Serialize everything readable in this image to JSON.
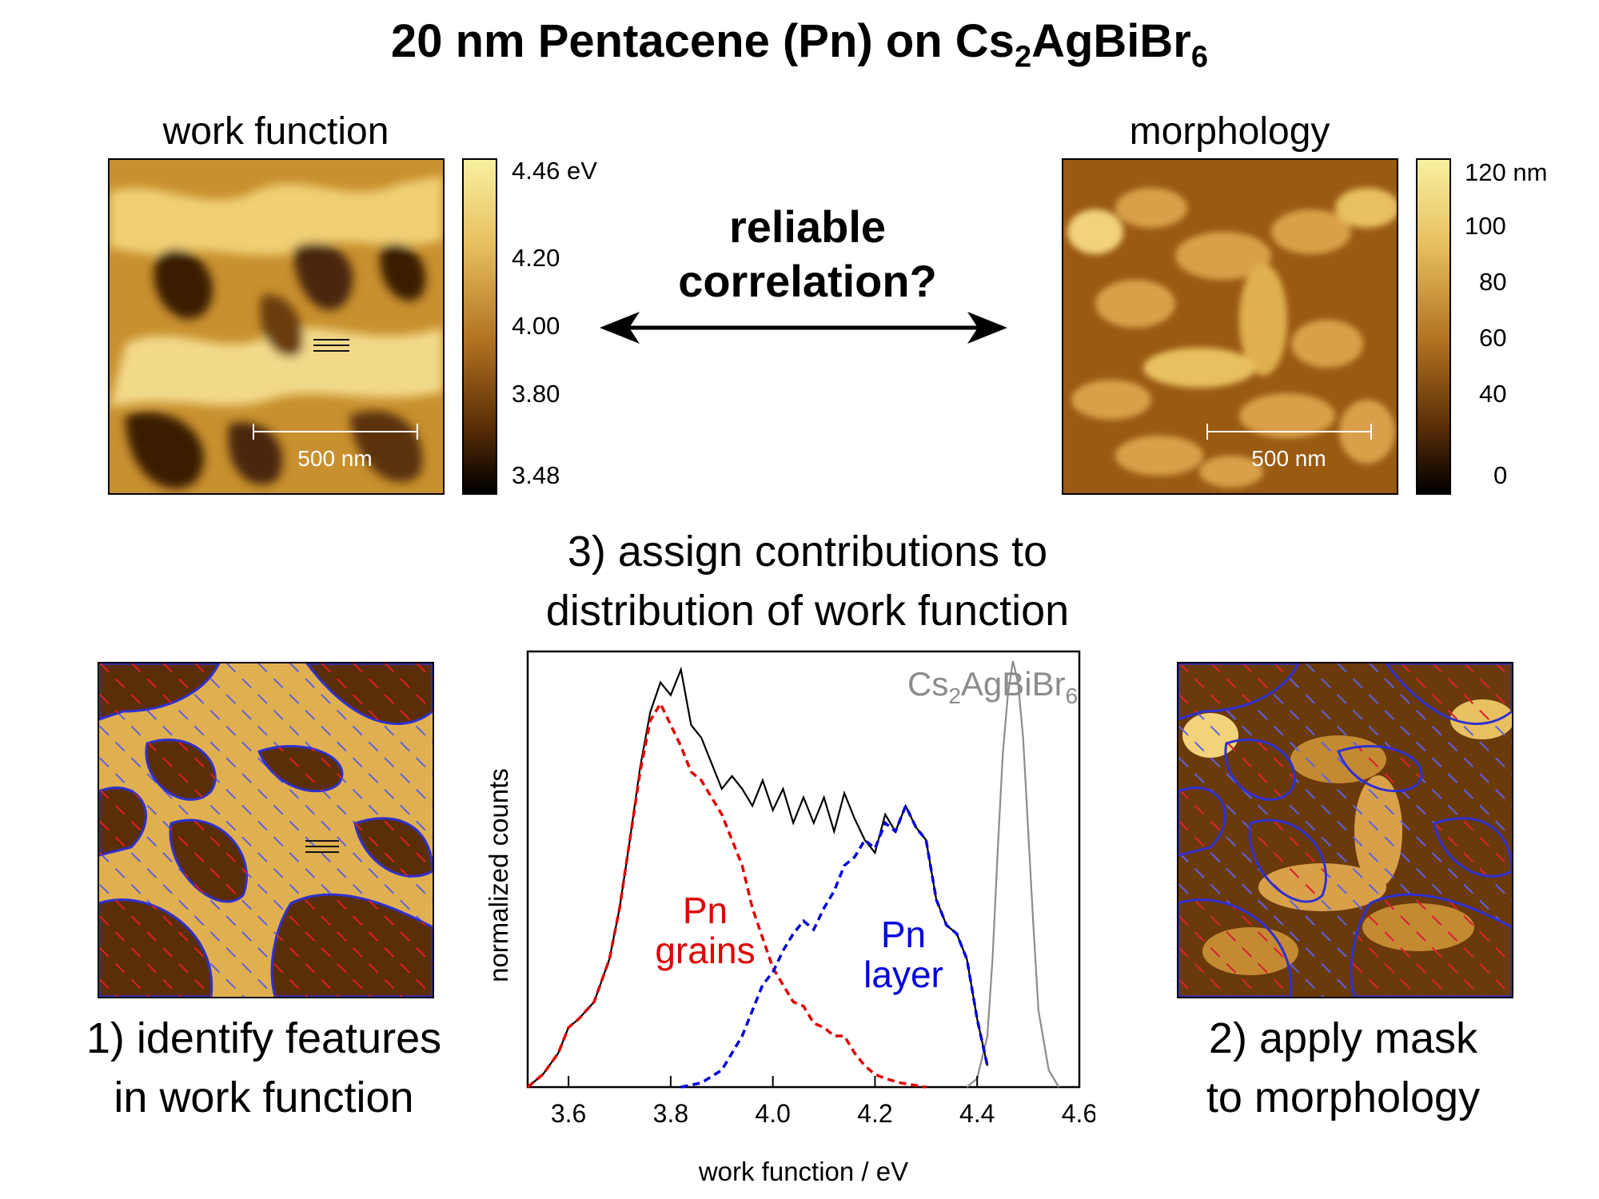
{
  "title": {
    "prefix": "20 nm Pentacene (Pn) on Cs",
    "sub1": "2",
    "mid": "AgBiBr",
    "sub2": "6"
  },
  "top_left": {
    "label": "work function",
    "colorbar_ticks": [
      "4.46 eV",
      "4.20",
      "4.00",
      "3.80",
      "3.48"
    ],
    "scalebar": "500 nm"
  },
  "top_right": {
    "label": "morphology",
    "colorbar_ticks": [
      "120 nm",
      "100",
      "80",
      "60",
      "40",
      "0"
    ],
    "scalebar": "500 nm"
  },
  "center": {
    "line1": "reliable",
    "line2": "correlation?"
  },
  "step3": {
    "line1": "3) assign contributions to",
    "line2": "distribution of work function"
  },
  "step1": {
    "line1": "1) identify features",
    "line2": "in work function"
  },
  "step2": {
    "line1": "2) apply mask",
    "line2": "to morphology"
  },
  "colors": {
    "grains": "#e00000",
    "layer": "#0000dd",
    "substrate": "#8c8c8c",
    "afm_dark": "#2a1400",
    "afm_light": "#f6e6a0"
  },
  "chart_data": {
    "type": "line",
    "xlabel": "work function / eV",
    "ylabel": "normalized counts",
    "xlim": [
      3.52,
      4.6
    ],
    "ylim": [
      0,
      1.0
    ],
    "x_ticks": [
      3.6,
      3.8,
      4.0,
      4.2,
      4.4,
      4.6
    ],
    "x_tick_labels": [
      "3.6",
      "3.8",
      "4.0",
      "4.2",
      "4.4",
      "4.6"
    ],
    "series": [
      {
        "style": "solid",
        "color": "#000000",
        "x": [
          3.52,
          3.55,
          3.58,
          3.6,
          3.62,
          3.65,
          3.68,
          3.7,
          3.72,
          3.74,
          3.76,
          3.78,
          3.8,
          3.82,
          3.84,
          3.86,
          3.88,
          3.9,
          3.92,
          3.94,
          3.96,
          3.98,
          4.0,
          4.02,
          4.04,
          4.06,
          4.08,
          4.1,
          4.12,
          4.14,
          4.16,
          4.18,
          4.2,
          4.22,
          4.24,
          4.26,
          4.28,
          4.3,
          4.32,
          4.34,
          4.36,
          4.38,
          4.4,
          4.42
        ],
        "y": [
          0.0,
          0.03,
          0.08,
          0.14,
          0.16,
          0.2,
          0.3,
          0.42,
          0.58,
          0.75,
          0.88,
          0.95,
          0.92,
          0.98,
          0.85,
          0.82,
          0.76,
          0.7,
          0.73,
          0.7,
          0.66,
          0.72,
          0.65,
          0.7,
          0.62,
          0.68,
          0.62,
          0.68,
          0.6,
          0.69,
          0.63,
          0.58,
          0.55,
          0.64,
          0.6,
          0.66,
          0.61,
          0.58,
          0.44,
          0.38,
          0.36,
          0.3,
          0.16,
          0.05
        ]
      },
      {
        "name": "Cs2AgBiBr6",
        "style": "solid",
        "color": "#8c8c8c",
        "x": [
          4.38,
          4.4,
          4.42,
          4.43,
          4.44,
          4.45,
          4.46,
          4.47,
          4.48,
          4.49,
          4.5,
          4.51,
          4.52,
          4.54,
          4.56
        ],
        "y": [
          0.0,
          0.02,
          0.12,
          0.3,
          0.55,
          0.78,
          0.92,
          1.0,
          0.95,
          0.82,
          0.6,
          0.38,
          0.18,
          0.04,
          0.0
        ]
      },
      {
        "name": "Pn grains",
        "style": "dashed",
        "color": "#e00000",
        "x": [
          3.52,
          3.55,
          3.58,
          3.6,
          3.62,
          3.65,
          3.68,
          3.7,
          3.72,
          3.74,
          3.76,
          3.78,
          3.8,
          3.82,
          3.84,
          3.86,
          3.88,
          3.9,
          3.92,
          3.94,
          3.96,
          3.98,
          4.0,
          4.02,
          4.04,
          4.06,
          4.08,
          4.1,
          4.12,
          4.14,
          4.16,
          4.18,
          4.2,
          4.22,
          4.25,
          4.3
        ],
        "y": [
          0.0,
          0.03,
          0.08,
          0.14,
          0.16,
          0.2,
          0.3,
          0.42,
          0.58,
          0.74,
          0.86,
          0.9,
          0.85,
          0.8,
          0.74,
          0.72,
          0.68,
          0.64,
          0.58,
          0.52,
          0.42,
          0.35,
          0.28,
          0.24,
          0.2,
          0.19,
          0.15,
          0.14,
          0.12,
          0.12,
          0.08,
          0.05,
          0.03,
          0.02,
          0.01,
          0.0
        ]
      },
      {
        "name": "Pn layer",
        "style": "dashed",
        "color": "#0000dd",
        "x": [
          3.82,
          3.86,
          3.9,
          3.92,
          3.94,
          3.96,
          3.98,
          4.0,
          4.02,
          4.04,
          4.06,
          4.08,
          4.1,
          4.12,
          4.14,
          4.16,
          4.18,
          4.2,
          4.22,
          4.24,
          4.26,
          4.28,
          4.3,
          4.32,
          4.34,
          4.36,
          4.38,
          4.4,
          4.42
        ],
        "y": [
          0.0,
          0.01,
          0.04,
          0.08,
          0.12,
          0.18,
          0.24,
          0.27,
          0.32,
          0.36,
          0.39,
          0.37,
          0.42,
          0.46,
          0.52,
          0.54,
          0.58,
          0.56,
          0.62,
          0.6,
          0.66,
          0.61,
          0.58,
          0.44,
          0.38,
          0.36,
          0.3,
          0.16,
          0.05
        ]
      }
    ],
    "annotations": [
      {
        "text": "Cs₂AgBiBr₆"
      },
      {
        "text": "Pn grains"
      },
      {
        "text": "Pn layer"
      }
    ]
  }
}
